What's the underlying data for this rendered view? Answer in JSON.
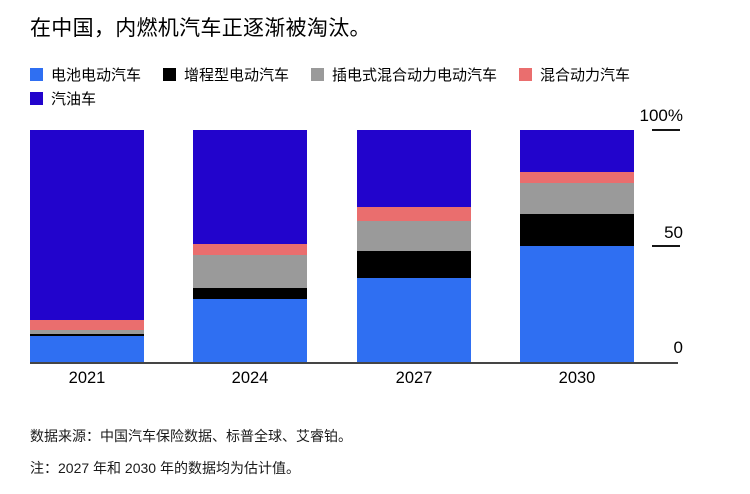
{
  "title": "在中国，内燃机汽车正逐渐被淘汰。",
  "legend": {
    "items": [
      {
        "label": "电池电动汽车",
        "color": "#2f6ff2"
      },
      {
        "label": "增程型电动汽车",
        "color": "#000000"
      },
      {
        "label": "插电式混合动力电动汽车",
        "color": "#9a9a9a"
      },
      {
        "label": "混合动力汽车",
        "color": "#ea6e6e"
      },
      {
        "label": "汽油车",
        "color": "#2204cc"
      }
    ]
  },
  "chart_data": {
    "type": "bar",
    "stacked": true,
    "title": "在中国，内燃机汽车正逐渐被淘汰。",
    "categories": [
      "2021",
      "2024",
      "2027",
      "2030"
    ],
    "series": [
      {
        "name": "电池电动汽车",
        "color": "#2f6ff2",
        "values": [
          11,
          27,
          36,
          50
        ]
      },
      {
        "name": "增程型电动汽车",
        "color": "#000000",
        "values": [
          1,
          5,
          12,
          14
        ]
      },
      {
        "name": "插电式混合动力电动汽车",
        "color": "#9a9a9a",
        "values": [
          2,
          14,
          13,
          13
        ]
      },
      {
        "name": "混合动力汽车",
        "color": "#ea6e6e",
        "values": [
          4,
          5,
          6,
          5
        ]
      },
      {
        "name": "汽油车",
        "color": "#2204cc",
        "values": [
          82,
          49,
          33,
          18
        ]
      }
    ],
    "unit": "%",
    "ylim": [
      0,
      100
    ],
    "yticks": [
      "0",
      "50",
      "100%"
    ],
    "legend_position": "top",
    "grid": false
  },
  "footer": {
    "source": "数据来源：中国汽车保险数据、标普全球、艾睿铂。",
    "note": "注：2027 年和 2030 年的数据均为估计值。"
  }
}
